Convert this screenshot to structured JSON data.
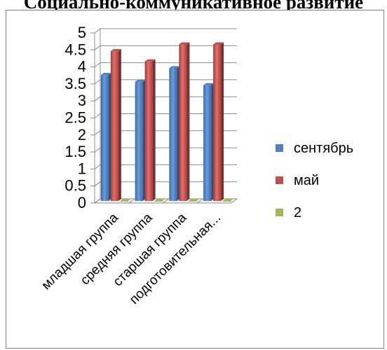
{
  "page_title": "Социально-коммуникативное развитие",
  "chart_data": {
    "type": "bar",
    "title": "",
    "xlabel": "",
    "ylabel": "",
    "ylim": [
      0,
      5
    ],
    "yticks": [
      0,
      0.5,
      1,
      1.5,
      2,
      2.5,
      3,
      3.5,
      4,
      4.5,
      5
    ],
    "grid": true,
    "legend_position": "right",
    "categories": [
      "младшая группа",
      "средняя группа",
      "старшая группа",
      "подготовительная..."
    ],
    "series": [
      {
        "name": "сентябрь",
        "color": "#4f81bd",
        "values": [
          3.7,
          3.5,
          3.9,
          3.4
        ]
      },
      {
        "name": "май",
        "color": "#c0504d",
        "values": [
          4.4,
          4.1,
          4.6,
          4.6
        ]
      },
      {
        "name": "2",
        "color": "#9bbb59",
        "values": [
          0,
          0,
          0,
          0
        ]
      }
    ]
  }
}
